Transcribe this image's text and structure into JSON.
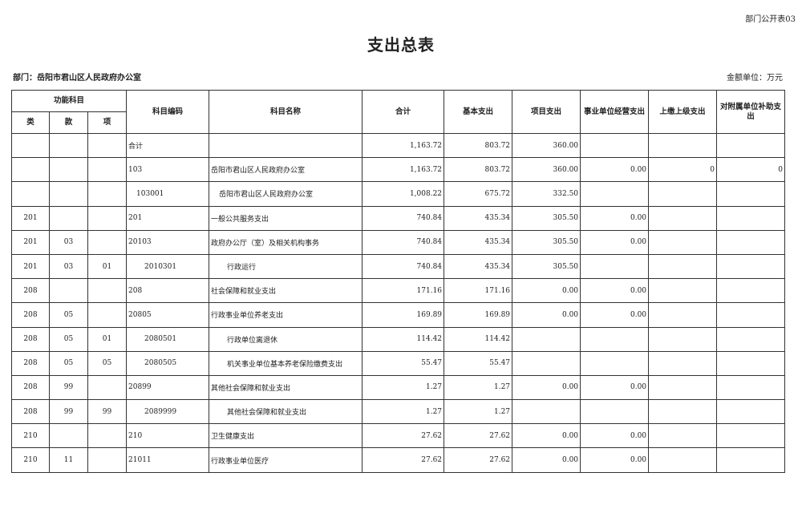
{
  "form_no": "部门公开表03",
  "title": "支出总表",
  "department": "部门：岳阳市君山区人民政府办公室",
  "unit": "金额单位：万元",
  "headers": {
    "func": "功能科目",
    "lei": "类",
    "kuan": "款",
    "xiang": "项",
    "code": "科目编码",
    "name": "科目名称",
    "total": "合计",
    "basic": "基本支出",
    "project": "项目支出",
    "business": "事业单位经营支出",
    "upper": "上缴上级支出",
    "subsidy": "对附属单位补助支出"
  },
  "rows": [
    {
      "lei": "",
      "kuan": "",
      "xiang": "",
      "code": "合计",
      "name": "",
      "total": "1,163.72",
      "basic": "803.72",
      "project": "360.00",
      "business": "",
      "upper": "",
      "subsidy": "",
      "indent": 0
    },
    {
      "lei": "",
      "kuan": "",
      "xiang": "",
      "code": "103",
      "name": "岳阳市君山区人民政府办公室",
      "total": "1,163.72",
      "basic": "803.72",
      "project": "360.00",
      "business": "0.00",
      "upper": "0",
      "subsidy": "0",
      "indent": 0
    },
    {
      "lei": "",
      "kuan": "",
      "xiang": "",
      "code": "103001",
      "name": "岳阳市君山区人民政府办公室",
      "total": "1,008.22",
      "basic": "675.72",
      "project": "332.50",
      "business": "",
      "upper": "",
      "subsidy": "",
      "indent": 1
    },
    {
      "lei": "201",
      "kuan": "",
      "xiang": "",
      "code": "201",
      "name": "一般公共服务支出",
      "total": "740.84",
      "basic": "435.34",
      "project": "305.50",
      "business": "0.00",
      "upper": "",
      "subsidy": "",
      "indent": 0
    },
    {
      "lei": "201",
      "kuan": "03",
      "xiang": "",
      "code": "20103",
      "name": "政府办公厅（室）及相关机构事务",
      "total": "740.84",
      "basic": "435.34",
      "project": "305.50",
      "business": "0.00",
      "upper": "",
      "subsidy": "",
      "indent": 0
    },
    {
      "lei": "201",
      "kuan": "03",
      "xiang": "01",
      "code": "2010301",
      "name": "行政运行",
      "total": "740.84",
      "basic": "435.34",
      "project": "305.50",
      "business": "",
      "upper": "",
      "subsidy": "",
      "indent": 2
    },
    {
      "lei": "208",
      "kuan": "",
      "xiang": "",
      "code": "208",
      "name": "社会保障和就业支出",
      "total": "171.16",
      "basic": "171.16",
      "project": "0.00",
      "business": "0.00",
      "upper": "",
      "subsidy": "",
      "indent": 0
    },
    {
      "lei": "208",
      "kuan": "05",
      "xiang": "",
      "code": "20805",
      "name": "行政事业单位养老支出",
      "total": "169.89",
      "basic": "169.89",
      "project": "0.00",
      "business": "0.00",
      "upper": "",
      "subsidy": "",
      "indent": 0
    },
    {
      "lei": "208",
      "kuan": "05",
      "xiang": "01",
      "code": "2080501",
      "name": "行政单位离退休",
      "total": "114.42",
      "basic": "114.42",
      "project": "",
      "business": "",
      "upper": "",
      "subsidy": "",
      "indent": 2
    },
    {
      "lei": "208",
      "kuan": "05",
      "xiang": "05",
      "code": "2080505",
      "name": "机关事业单位基本养老保险缴费支出",
      "total": "55.47",
      "basic": "55.47",
      "project": "",
      "business": "",
      "upper": "",
      "subsidy": "",
      "indent": 2
    },
    {
      "lei": "208",
      "kuan": "99",
      "xiang": "",
      "code": "20899",
      "name": "其他社会保障和就业支出",
      "total": "1.27",
      "basic": "1.27",
      "project": "0.00",
      "business": "0.00",
      "upper": "",
      "subsidy": "",
      "indent": 0
    },
    {
      "lei": "208",
      "kuan": "99",
      "xiang": "99",
      "code": "2089999",
      "name": "其他社会保障和就业支出",
      "total": "1.27",
      "basic": "1.27",
      "project": "",
      "business": "",
      "upper": "",
      "subsidy": "",
      "indent": 2
    },
    {
      "lei": "210",
      "kuan": "",
      "xiang": "",
      "code": "210",
      "name": "卫生健康支出",
      "total": "27.62",
      "basic": "27.62",
      "project": "0.00",
      "business": "0.00",
      "upper": "",
      "subsidy": "",
      "indent": 0
    },
    {
      "lei": "210",
      "kuan": "11",
      "xiang": "",
      "code": "21011",
      "name": "行政事业单位医疗",
      "total": "27.62",
      "basic": "27.62",
      "project": "0.00",
      "business": "0.00",
      "upper": "",
      "subsidy": "",
      "indent": 0
    }
  ]
}
